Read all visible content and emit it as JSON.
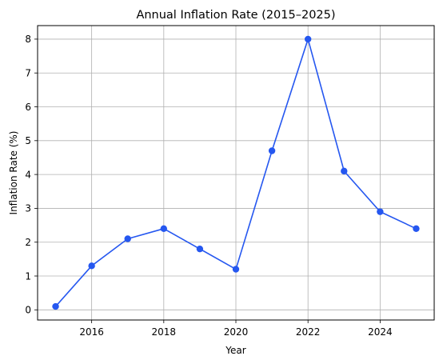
{
  "chart_data": {
    "type": "line",
    "title": "Annual Inflation Rate (2015–2025)",
    "xlabel": "Year",
    "ylabel": "Inflation Rate (%)",
    "x": [
      2015,
      2016,
      2017,
      2018,
      2019,
      2020,
      2021,
      2022,
      2023,
      2024,
      2025
    ],
    "series": [
      {
        "values": [
          0.1,
          1.3,
          2.1,
          2.4,
          1.8,
          1.2,
          4.7,
          8.0,
          4.1,
          2.9,
          2.4
        ],
        "color": "#2557f0",
        "marker": "circle"
      }
    ],
    "xticks": [
      "2016",
      "2018",
      "2020",
      "2022",
      "2024"
    ],
    "xtick_values": [
      2016,
      2018,
      2020,
      2022,
      2024
    ],
    "yticks": [
      "0",
      "1",
      "2",
      "3",
      "4",
      "5",
      "6",
      "7",
      "8"
    ],
    "ytick_values": [
      0,
      1,
      2,
      3,
      4,
      5,
      6,
      7,
      8
    ],
    "xlim": [
      2014.5,
      2025.5
    ],
    "ylim": [
      -0.3,
      8.4
    ],
    "grid": true,
    "legend": "none"
  }
}
